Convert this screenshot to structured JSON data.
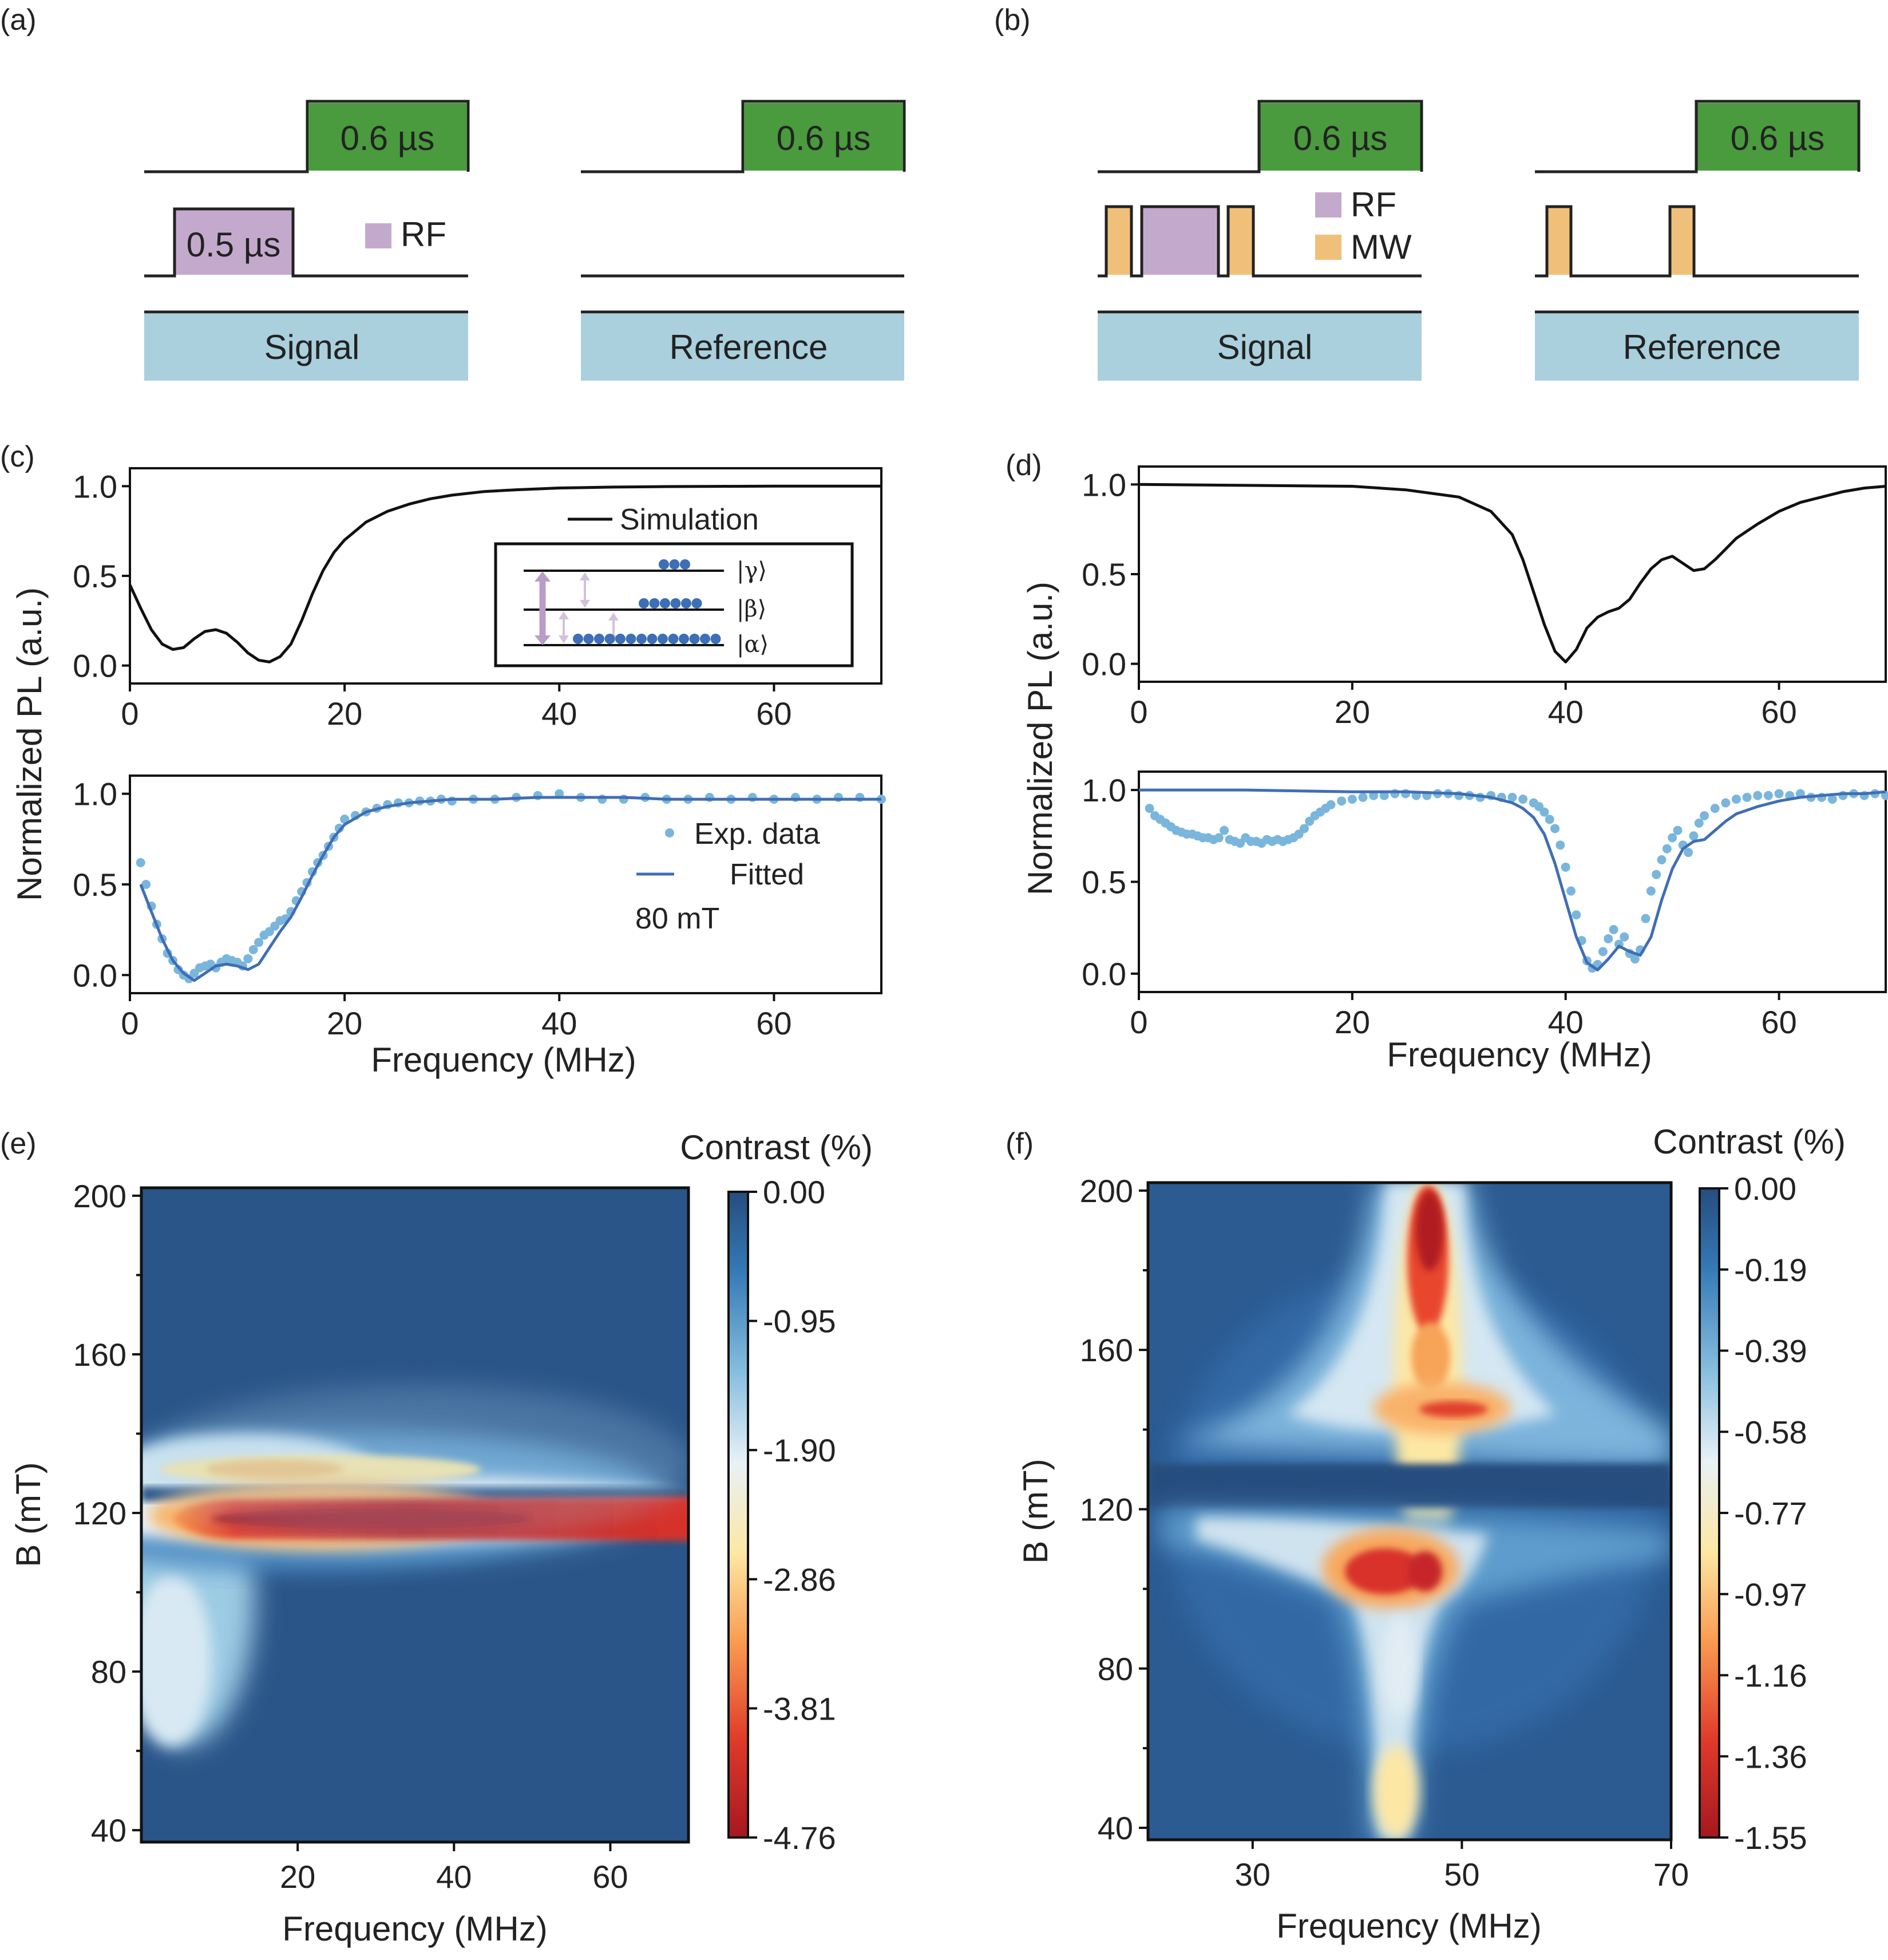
{
  "colors": {
    "laser": "#4a9a3e",
    "rf": "#c3aacc",
    "mw": "#f0c07a",
    "block": "#a9d0dc",
    "sim_line": "#111111",
    "exp_dots": "#7ab6dc",
    "fit_line": "#3f6eb5",
    "cmap": [
      "#a51820",
      "#e03a2a",
      "#f99a50",
      "#fde7a4",
      "#e8f1f6",
      "#86bede",
      "#3478b5",
      "#264d7e"
    ]
  },
  "panel_a": {
    "label": "(a)",
    "laser_label_signal": "0.6 µs",
    "laser_label_reference": "0.6 µs",
    "rf_pulse_label": "0.5 µs",
    "legend_rf": "RF",
    "signal_label": "Signal",
    "reference_label": "Reference"
  },
  "panel_b": {
    "label": "(b)",
    "laser_label_signal": "0.6 µs",
    "laser_label_reference": "0.6 µs",
    "legend_rf": "RF",
    "legend_mw": "MW",
    "signal_label": "Signal",
    "reference_label": "Reference"
  },
  "panel_c": {
    "label": "(c)",
    "ylabel": "Normalized PL (a.u.)",
    "xlabel": "Frequency (MHz)",
    "legend_sim": "Simulation",
    "legend_exp": "Exp. data",
    "legend_fit": "Fitted",
    "field_note": "80 mT",
    "levels": {
      "gamma": "|γ⟩",
      "beta": "|β⟩",
      "alpha": "|α⟩"
    },
    "x_ticks": [
      "0",
      "20",
      "40",
      "60"
    ],
    "y_ticks": [
      "0.0",
      "0.5",
      "1.0"
    ]
  },
  "panel_d": {
    "label": "(d)",
    "ylabel": "Normalized PL (a.u.)",
    "xlabel": "Frequency (MHz)",
    "x_ticks": [
      "0",
      "20",
      "40",
      "60"
    ],
    "y_ticks": [
      "0.0",
      "0.5",
      "1.0"
    ]
  },
  "panel_e": {
    "label": "(e)",
    "colorbar_title": "Contrast (%)",
    "colorbar_ticks": [
      "0.00",
      "-0.95",
      "-1.90",
      "-2.86",
      "-3.81",
      "-4.76"
    ],
    "xlabel": "Frequency (MHz)",
    "ylabel": "B (mT)",
    "x_ticks": [
      "20",
      "40",
      "60"
    ],
    "y_ticks": [
      "40",
      "80",
      "120",
      "160",
      "200"
    ]
  },
  "panel_f": {
    "label": "(f)",
    "colorbar_title": "Contrast (%)",
    "colorbar_ticks": [
      "0.00",
      "-0.19",
      "-0.39",
      "-0.58",
      "-0.77",
      "-0.97",
      "-1.16",
      "-1.36",
      "-1.55"
    ],
    "xlabel": "Frequency (MHz)",
    "ylabel": "B (mT)",
    "x_ticks": [
      "30",
      "50",
      "70"
    ],
    "y_ticks": [
      "40",
      "80",
      "120",
      "160",
      "200"
    ]
  },
  "chart_data": [
    {
      "id": "c-top",
      "type": "line",
      "title": "Simulation",
      "xlabel": "",
      "ylabel": "Normalized PL (a.u.)",
      "xlim": [
        0,
        70
      ],
      "ylim": [
        -0.1,
        1.1
      ],
      "series": [
        {
          "name": "Simulation",
          "x": [
            0,
            1,
            2,
            3,
            4,
            5,
            6,
            7,
            8,
            9,
            10,
            11,
            12,
            13,
            14,
            15,
            16,
            17,
            18,
            19,
            20,
            22,
            24,
            26,
            28,
            30,
            33,
            36,
            40,
            45,
            50,
            55,
            60,
            65,
            70
          ],
          "y": [
            0.45,
            0.32,
            0.2,
            0.12,
            0.09,
            0.1,
            0.15,
            0.19,
            0.2,
            0.18,
            0.13,
            0.07,
            0.03,
            0.02,
            0.05,
            0.12,
            0.25,
            0.4,
            0.53,
            0.63,
            0.7,
            0.8,
            0.86,
            0.9,
            0.93,
            0.95,
            0.97,
            0.98,
            0.99,
            0.995,
            0.998,
            0.999,
            1.0,
            1.0,
            1.0
          ]
        }
      ]
    },
    {
      "id": "c-bottom",
      "type": "scatter",
      "xlabel": "Frequency (MHz)",
      "ylabel": "Normalized PL (a.u.)",
      "xlim": [
        0,
        70
      ],
      "ylim": [
        -0.1,
        1.1
      ],
      "series": [
        {
          "name": "Exp. data",
          "x": [
            1,
            1.5,
            2,
            2.5,
            3,
            3.5,
            4,
            4.5,
            5,
            5.5,
            6,
            6.5,
            7,
            7.5,
            8,
            8.5,
            9,
            9.5,
            10,
            10.5,
            11,
            11.5,
            12,
            12.5,
            13,
            13.5,
            14,
            14.5,
            15,
            15.5,
            16,
            16.5,
            17,
            17.5,
            18,
            18.5,
            19,
            19.5,
            20,
            21,
            22,
            23,
            24,
            25,
            26,
            27,
            28,
            29,
            30,
            32,
            34,
            36,
            38,
            40,
            42,
            44,
            46,
            48,
            50,
            52,
            54,
            56,
            58,
            60,
            62,
            64,
            66,
            68,
            70
          ],
          "y": [
            0.62,
            0.5,
            0.38,
            0.28,
            0.2,
            0.12,
            0.08,
            0.03,
            0.0,
            -0.02,
            0.01,
            0.04,
            0.05,
            0.06,
            0.04,
            0.07,
            0.09,
            0.08,
            0.07,
            0.05,
            0.09,
            0.14,
            0.18,
            0.22,
            0.24,
            0.27,
            0.3,
            0.31,
            0.35,
            0.41,
            0.46,
            0.51,
            0.57,
            0.62,
            0.66,
            0.71,
            0.76,
            0.81,
            0.86,
            0.88,
            0.9,
            0.92,
            0.94,
            0.95,
            0.95,
            0.96,
            0.96,
            0.97,
            0.96,
            0.97,
            0.97,
            0.98,
            0.99,
            1.0,
            0.98,
            0.97,
            0.97,
            0.98,
            0.97,
            0.97,
            0.98,
            0.97,
            0.98,
            0.97,
            0.98,
            0.97,
            0.98,
            0.98,
            0.97
          ]
        },
        {
          "name": "Fitted",
          "x": [
            1,
            2,
            3,
            4,
            5,
            6,
            7,
            8,
            9,
            10,
            11,
            12,
            13,
            14,
            15,
            16,
            17,
            18,
            19,
            20,
            22,
            24,
            26,
            28,
            30,
            34,
            38,
            42,
            46,
            50,
            55,
            60,
            65,
            70
          ],
          "y": [
            0.5,
            0.35,
            0.2,
            0.08,
            0.01,
            -0.03,
            0.01,
            0.05,
            0.06,
            0.05,
            0.03,
            0.06,
            0.15,
            0.24,
            0.32,
            0.43,
            0.55,
            0.66,
            0.76,
            0.83,
            0.9,
            0.93,
            0.95,
            0.96,
            0.97,
            0.97,
            0.98,
            0.98,
            0.98,
            0.97,
            0.97,
            0.97,
            0.97,
            0.97
          ]
        }
      ]
    },
    {
      "id": "d-top",
      "type": "line",
      "xlabel": "",
      "ylabel": "Normalized PL (a.u.)",
      "xlim": [
        0,
        70
      ],
      "ylim": [
        -0.1,
        1.1
      ],
      "series": [
        {
          "name": "Simulation",
          "x": [
            0,
            10,
            20,
            25,
            30,
            33,
            35,
            36,
            37,
            38,
            39,
            40,
            41,
            42,
            43,
            44,
            45,
            46,
            47,
            48,
            49,
            50,
            51,
            52,
            53,
            54,
            55,
            56,
            58,
            60,
            62,
            64,
            66,
            68,
            70
          ],
          "y": [
            1.0,
            0.995,
            0.99,
            0.97,
            0.93,
            0.85,
            0.72,
            0.58,
            0.4,
            0.22,
            0.07,
            0.01,
            0.08,
            0.2,
            0.26,
            0.29,
            0.31,
            0.36,
            0.45,
            0.53,
            0.58,
            0.6,
            0.56,
            0.52,
            0.53,
            0.58,
            0.64,
            0.7,
            0.78,
            0.85,
            0.9,
            0.93,
            0.96,
            0.98,
            0.99
          ]
        }
      ]
    },
    {
      "id": "d-bottom",
      "type": "scatter",
      "xlabel": "Frequency (MHz)",
      "ylabel": "Normalized PL (a.u.)",
      "xlim": [
        0,
        70
      ],
      "ylim": [
        -0.1,
        1.1
      ],
      "series": [
        {
          "name": "Exp. data",
          "x": [
            1,
            1.5,
            2,
            2.5,
            3,
            3.5,
            4,
            4.5,
            5,
            5.5,
            6,
            6.5,
            7,
            7.5,
            8,
            8.5,
            9,
            9.5,
            10,
            10.5,
            11,
            11.5,
            12,
            12.5,
            13,
            13.5,
            14,
            14.5,
            15,
            15.5,
            16,
            16.5,
            17,
            17.5,
            18,
            19,
            20,
            21,
            22,
            23,
            24,
            25,
            26,
            27,
            28,
            29,
            30,
            31,
            32,
            33,
            34,
            35,
            36,
            37,
            37.5,
            38,
            38.5,
            39,
            39.5,
            40,
            40.5,
            41,
            41.5,
            42,
            42.5,
            43,
            43.5,
            44,
            44.5,
            45,
            45.5,
            46,
            46.5,
            47,
            47.5,
            48,
            48.5,
            49,
            49.5,
            50,
            50.5,
            51,
            51.5,
            52,
            52.5,
            53,
            54,
            55,
            56,
            57,
            58,
            59,
            60,
            61,
            62,
            63,
            64,
            65,
            66,
            67,
            68,
            69,
            70
          ],
          "y": [
            0.9,
            0.86,
            0.84,
            0.82,
            0.8,
            0.78,
            0.77,
            0.76,
            0.76,
            0.75,
            0.74,
            0.74,
            0.73,
            0.74,
            0.78,
            0.73,
            0.72,
            0.71,
            0.74,
            0.72,
            0.72,
            0.71,
            0.73,
            0.72,
            0.73,
            0.72,
            0.73,
            0.74,
            0.76,
            0.79,
            0.83,
            0.86,
            0.88,
            0.9,
            0.92,
            0.94,
            0.95,
            0.96,
            0.97,
            0.97,
            0.98,
            0.98,
            0.97,
            0.97,
            0.98,
            0.98,
            0.97,
            0.97,
            0.96,
            0.97,
            0.96,
            0.96,
            0.95,
            0.93,
            0.91,
            0.88,
            0.84,
            0.79,
            0.7,
            0.58,
            0.45,
            0.32,
            0.18,
            0.07,
            0.03,
            0.05,
            0.12,
            0.19,
            0.24,
            0.16,
            0.2,
            0.11,
            0.08,
            0.13,
            0.3,
            0.45,
            0.54,
            0.62,
            0.68,
            0.74,
            0.78,
            0.7,
            0.66,
            0.75,
            0.82,
            0.86,
            0.9,
            0.93,
            0.95,
            0.96,
            0.97,
            0.97,
            0.98,
            0.97,
            0.98,
            0.96,
            0.96,
            0.95,
            0.97,
            0.98,
            0.97,
            0.98,
            0.97
          ]
        },
        {
          "name": "Fitted",
          "x": [
            0,
            10,
            20,
            25,
            30,
            33,
            35,
            36,
            37,
            38,
            39,
            40,
            41,
            42,
            43,
            44,
            45,
            46,
            47,
            48,
            49,
            50,
            51,
            52,
            53,
            54,
            55,
            56,
            58,
            60,
            62,
            64,
            66,
            68,
            70
          ],
          "y": [
            1.0,
            1.0,
            0.99,
            0.99,
            0.98,
            0.96,
            0.93,
            0.9,
            0.85,
            0.76,
            0.6,
            0.4,
            0.2,
            0.06,
            0.02,
            0.08,
            0.15,
            0.12,
            0.1,
            0.2,
            0.4,
            0.57,
            0.68,
            0.72,
            0.73,
            0.78,
            0.83,
            0.87,
            0.91,
            0.94,
            0.96,
            0.97,
            0.98,
            0.98,
            0.99
          ]
        }
      ]
    },
    {
      "id": "e-map",
      "type": "heatmap",
      "xlabel": "Frequency (MHz)",
      "ylabel": "B (mT)",
      "xlim": [
        0,
        70
      ],
      "ylim": [
        37,
        202
      ],
      "colorbar": {
        "title": "Contrast (%)",
        "range": [
          -4.76,
          0.0
        ]
      },
      "features": [
        {
          "description": "strong red band",
          "B": 116,
          "freq_range": [
            8,
            70
          ],
          "contrast_min": -4.6
        },
        {
          "description": "weak yellow band",
          "B": 131,
          "freq_range": [
            10,
            35
          ],
          "contrast_min": -2.4
        },
        {
          "description": "dark gap",
          "B": 125,
          "contrast": 0.0
        },
        {
          "description": "light-blue low-frequency lobe",
          "B_range": [
            65,
            110
          ],
          "freq_range": [
            1,
            12
          ],
          "contrast_min": -1.5
        }
      ]
    },
    {
      "id": "f-map",
      "type": "heatmap",
      "xlabel": "Frequency (MHz)",
      "ylabel": "B (mT)",
      "xlim": [
        20,
        70
      ],
      "ylim": [
        37,
        202
      ],
      "colorbar": {
        "title": "Contrast (%)",
        "range": [
          -1.55,
          0.0
        ]
      },
      "features": [
        {
          "description": "upper red vertical band",
          "B_range": [
            140,
            202
          ],
          "freq": 46.5,
          "contrast_min": -1.5
        },
        {
          "description": "orange/red lower cluster",
          "B_range": [
            95,
            115
          ],
          "freq": 44,
          "contrast_min": -1.5
        },
        {
          "description": "dark gap",
          "B_range": [
            118,
            132
          ],
          "contrast": 0.0
        },
        {
          "description": "light column",
          "B_range": [
            40,
            95
          ],
          "freq": 44,
          "contrast_min": -0.7
        }
      ]
    }
  ]
}
